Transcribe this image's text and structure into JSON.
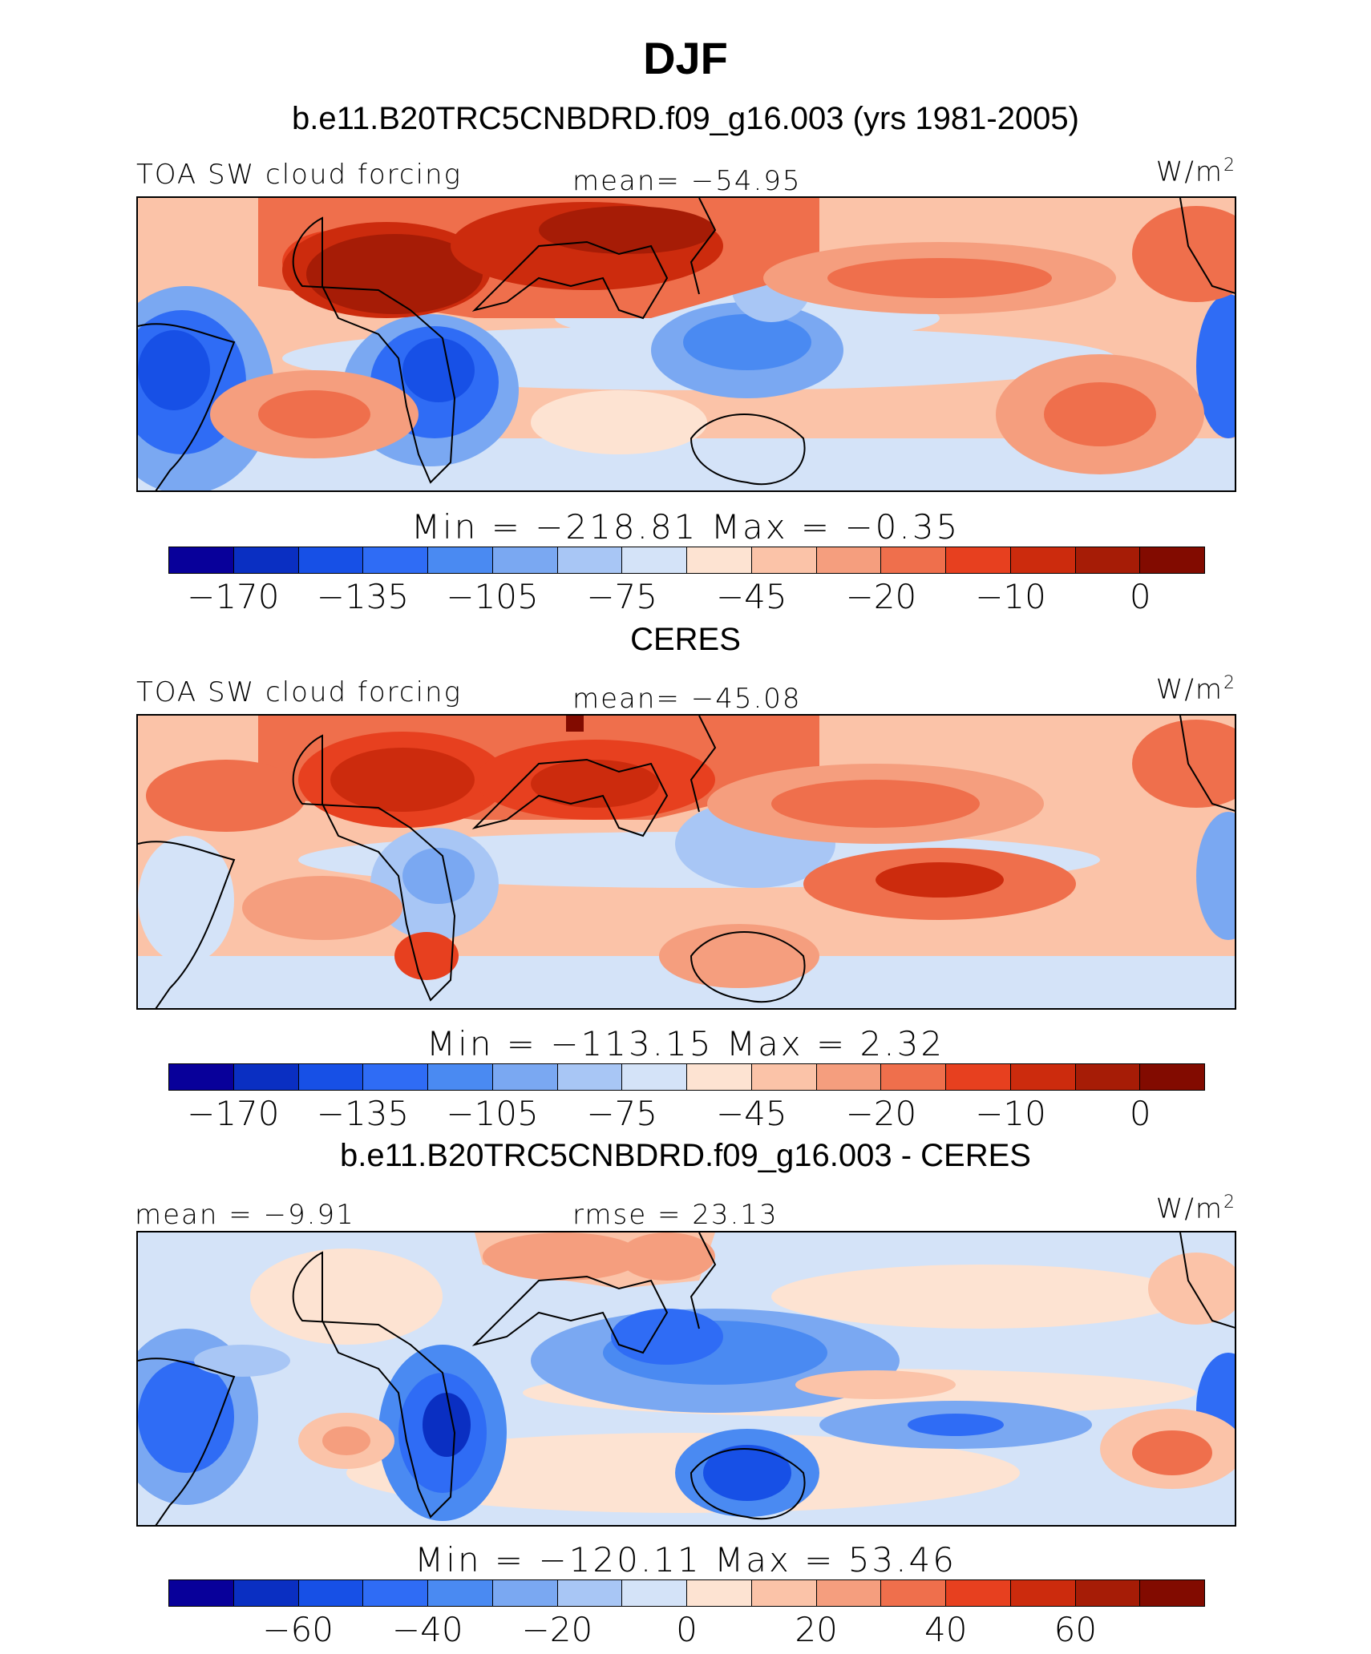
{
  "header": {
    "title": "DJF",
    "case": "b.e11.B20TRC5CNBDRD.f09_g16.003 (yrs 1981-2005)"
  },
  "palette": [
    "#08009a",
    "#0a2fc2",
    "#1750e6",
    "#2f6cf5",
    "#4a8af2",
    "#7aa8f2",
    "#a8c6f5",
    "#d4e3f8",
    "#fde3d2",
    "#fbc3a8",
    "#f59e7e",
    "#ef6f4c",
    "#e7401f",
    "#cc2b0d",
    "#a61c06",
    "#820b00"
  ],
  "panels": [
    {
      "title": "",
      "left_label": "TOA SW cloud forcing",
      "center_label": "mean= −54.95",
      "units": "W/m",
      "units_exp": "2",
      "minmax": "Min  =  −218.81  Max  =    −0.35",
      "ticks": [
        "−170",
        "−135",
        "−105",
        "−75",
        "−45",
        "−20",
        "−10",
        "0"
      ]
    },
    {
      "title": "CERES",
      "left_label": "TOA SW cloud forcing",
      "center_label": "mean= −45.08",
      "units": "W/m",
      "units_exp": "2",
      "minmax": "Min  =  −113.15  Max  =     2.32",
      "ticks": [
        "−170",
        "−135",
        "−105",
        "−75",
        "−45",
        "−20",
        "−10",
        "0"
      ]
    },
    {
      "title": "b.e11.B20TRC5CNBDRD.f09_g16.003 - CERES",
      "left_label": "mean =   −9.91",
      "center_label": "rmse =   23.13",
      "units": "W/m",
      "units_exp": "2",
      "minmax": "Min  =  −120.11  Max  =   53.46",
      "ticks": [
        "−60",
        "−40",
        "−20",
        "0",
        "20",
        "40",
        "60"
      ]
    }
  ]
}
